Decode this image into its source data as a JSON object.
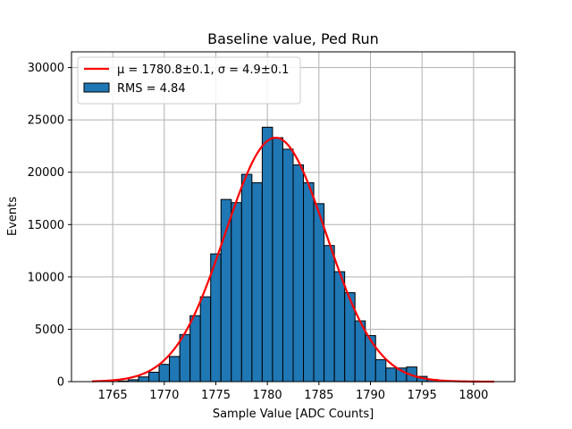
{
  "chart_data": {
    "type": "bar",
    "title": "Baseline value, Ped Run",
    "xlabel": "Sample Value [ADC Counts]",
    "ylabel": "Events",
    "xlim": [
      1761.0,
      1804.0
    ],
    "ylim": [
      0,
      31500
    ],
    "xticks": [
      1765,
      1770,
      1775,
      1780,
      1785,
      1790,
      1795,
      1800
    ],
    "yticks": [
      0,
      5000,
      10000,
      15000,
      20000,
      25000,
      30000
    ],
    "grid": true,
    "legend_position": "top-left",
    "bin_width": 1,
    "bins": [
      {
        "x": 1766,
        "value": 60
      },
      {
        "x": 1767,
        "value": 180
      },
      {
        "x": 1768,
        "value": 450
      },
      {
        "x": 1769,
        "value": 900
      },
      {
        "x": 1770,
        "value": 1650
      },
      {
        "x": 1771,
        "value": 2400
      },
      {
        "x": 1772,
        "value": 4500
      },
      {
        "x": 1773,
        "value": 6300
      },
      {
        "x": 1774,
        "value": 8100
      },
      {
        "x": 1775,
        "value": 12200
      },
      {
        "x": 1776,
        "value": 17400
      },
      {
        "x": 1777,
        "value": 17100
      },
      {
        "x": 1778,
        "value": 19800
      },
      {
        "x": 1779,
        "value": 19000
      },
      {
        "x": 1780,
        "value": 24300
      },
      {
        "x": 1781,
        "value": 23300
      },
      {
        "x": 1782,
        "value": 22200
      },
      {
        "x": 1783,
        "value": 20700
      },
      {
        "x": 1784,
        "value": 19000
      },
      {
        "x": 1785,
        "value": 17000
      },
      {
        "x": 1786,
        "value": 13000
      },
      {
        "x": 1787,
        "value": 10500
      },
      {
        "x": 1788,
        "value": 8500
      },
      {
        "x": 1789,
        "value": 5800
      },
      {
        "x": 1790,
        "value": 4400
      },
      {
        "x": 1791,
        "value": 2100
      },
      {
        "x": 1792,
        "value": 1300
      },
      {
        "x": 1793,
        "value": 1300
      },
      {
        "x": 1794,
        "value": 1400
      },
      {
        "x": 1795,
        "value": 500
      },
      {
        "x": 1796,
        "value": 200
      },
      {
        "x": 1797,
        "value": 80
      }
    ],
    "fit": {
      "mu": 1780.8,
      "sigma": 4.9,
      "amplitude": 23300,
      "x_range": [
        1763,
        1802
      ],
      "label": "μ = 1780.8±0.1, σ = 4.9±0.1"
    },
    "series": [
      {
        "name": "μ = 1780.8±0.1, σ = 4.9±0.1",
        "type": "line"
      },
      {
        "name": "RMS = 4.84",
        "type": "bar"
      }
    ],
    "colors": {
      "bar_fill": "#1f77b4",
      "bar_edge": "#000000",
      "fit_line": "#ff0000",
      "grid": "#b0b0b0"
    }
  }
}
